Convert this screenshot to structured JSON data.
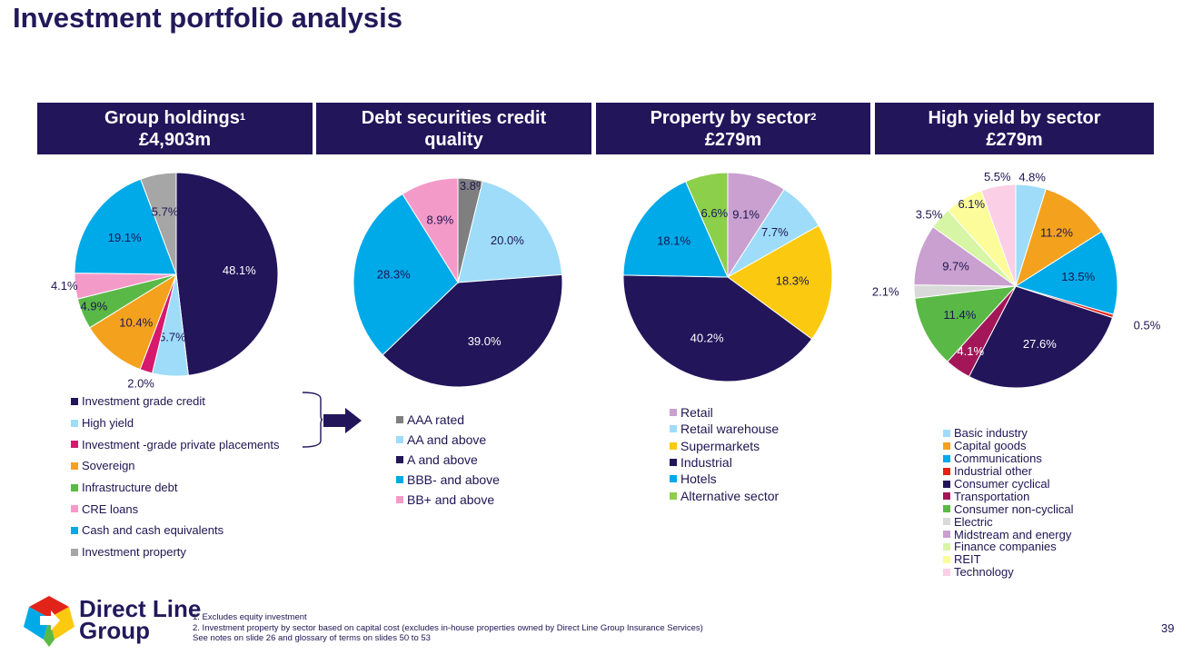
{
  "page": {
    "title": "Investment portfolio analysis",
    "page_number": "39"
  },
  "logo": {
    "line1": "Direct Line",
    "line2": "Group"
  },
  "footnotes": [
    "1.  Excludes equity investment",
    "2.  Investment property by sector based on capital cost (excludes in-house properties owned by Direct Line Group Insurance Services)",
    "See notes on slide 26 and glossary of terms on slides 50 to 53"
  ],
  "chart_data": [
    {
      "type": "pie",
      "title_line1": "Group holdings",
      "title_sup": "1",
      "title_line2": "£4,903m",
      "categories": [
        "Investment grade credit",
        "High yield",
        "Investment -grade private placements",
        "Sovereign",
        "Infrastructure debt",
        "CRE loans",
        "Cash and cash equivalents",
        "Investment property"
      ],
      "values": [
        48.1,
        5.7,
        2.0,
        10.4,
        4.9,
        4.1,
        19.1,
        5.7
      ],
      "labels": [
        "48.1%",
        "5.7%",
        "2.0%",
        "10.4%",
        "4.9%",
        "4.1%",
        "19.1%",
        "5.7%"
      ],
      "colors": [
        "#22155a",
        "#9edcfa",
        "#d6196d",
        "#f4a11d",
        "#5ab946",
        "#f49ac9",
        "#00a9e8",
        "#a6a6a6"
      ],
      "legend_position": "bottom"
    },
    {
      "type": "pie",
      "title_line1": "Debt securities credit",
      "title_line2": "quality",
      "categories": [
        "AAA rated",
        "AA and above",
        "A and above",
        "BBB- and above",
        "BB+ and above"
      ],
      "values": [
        3.8,
        20.0,
        39.0,
        28.3,
        8.9
      ],
      "labels": [
        "3.8%",
        "20.0%",
        "39.0%",
        "28.3%",
        "8.9%"
      ],
      "colors": [
        "#7f7f7f",
        "#9edcfa",
        "#22155a",
        "#00a9e8",
        "#f49ac9"
      ],
      "legend_position": "bottom"
    },
    {
      "type": "pie",
      "title_line1": "Property by sector",
      "title_sup": "2",
      "title_line2": "£279m",
      "categories": [
        "Retail",
        "Retail warehouse",
        "Supermarkets",
        "Industrial",
        "Hotels",
        "Alternative sector"
      ],
      "values": [
        9.1,
        7.7,
        18.3,
        40.2,
        18.1,
        6.6
      ],
      "labels": [
        "9.1%",
        "7.7%",
        "18.3%",
        "40.2%",
        "18.1%",
        "6.6%"
      ],
      "colors": [
        "#c9a0cf",
        "#9edcfa",
        "#fbc90f",
        "#22155a",
        "#00a9e8",
        "#8ccf4a"
      ],
      "legend_position": "bottom"
    },
    {
      "type": "pie",
      "title_line1": "High yield by sector",
      "title_line2": "£279m",
      "categories": [
        "Basic industry",
        "Capital goods",
        "Communications",
        "Industrial other",
        "Consumer cyclical",
        "Transportation",
        "Consumer non-cyclical",
        "Electric",
        "Midstream and energy",
        "Finance companies",
        "REIT",
        "Technology"
      ],
      "values": [
        4.8,
        11.2,
        13.5,
        0.5,
        27.6,
        4.1,
        11.4,
        2.1,
        9.7,
        3.5,
        6.1,
        5.5
      ],
      "labels": [
        "4.8%",
        "11.2%",
        "13.5%",
        "0.5%",
        "27.6%",
        "4.1%",
        "11.4%",
        "2.1%",
        "9.7%",
        "3.5%",
        "6.1%",
        "5.5%"
      ],
      "colors": [
        "#9edcfa",
        "#f4a11d",
        "#00a9e8",
        "#e2231a",
        "#22155a",
        "#a31759",
        "#5ab946",
        "#d9d9d9",
        "#c9a0cf",
        "#d6f5a5",
        "#fcfc9a",
        "#fbcfe5"
      ],
      "legend_position": "bottom"
    }
  ]
}
